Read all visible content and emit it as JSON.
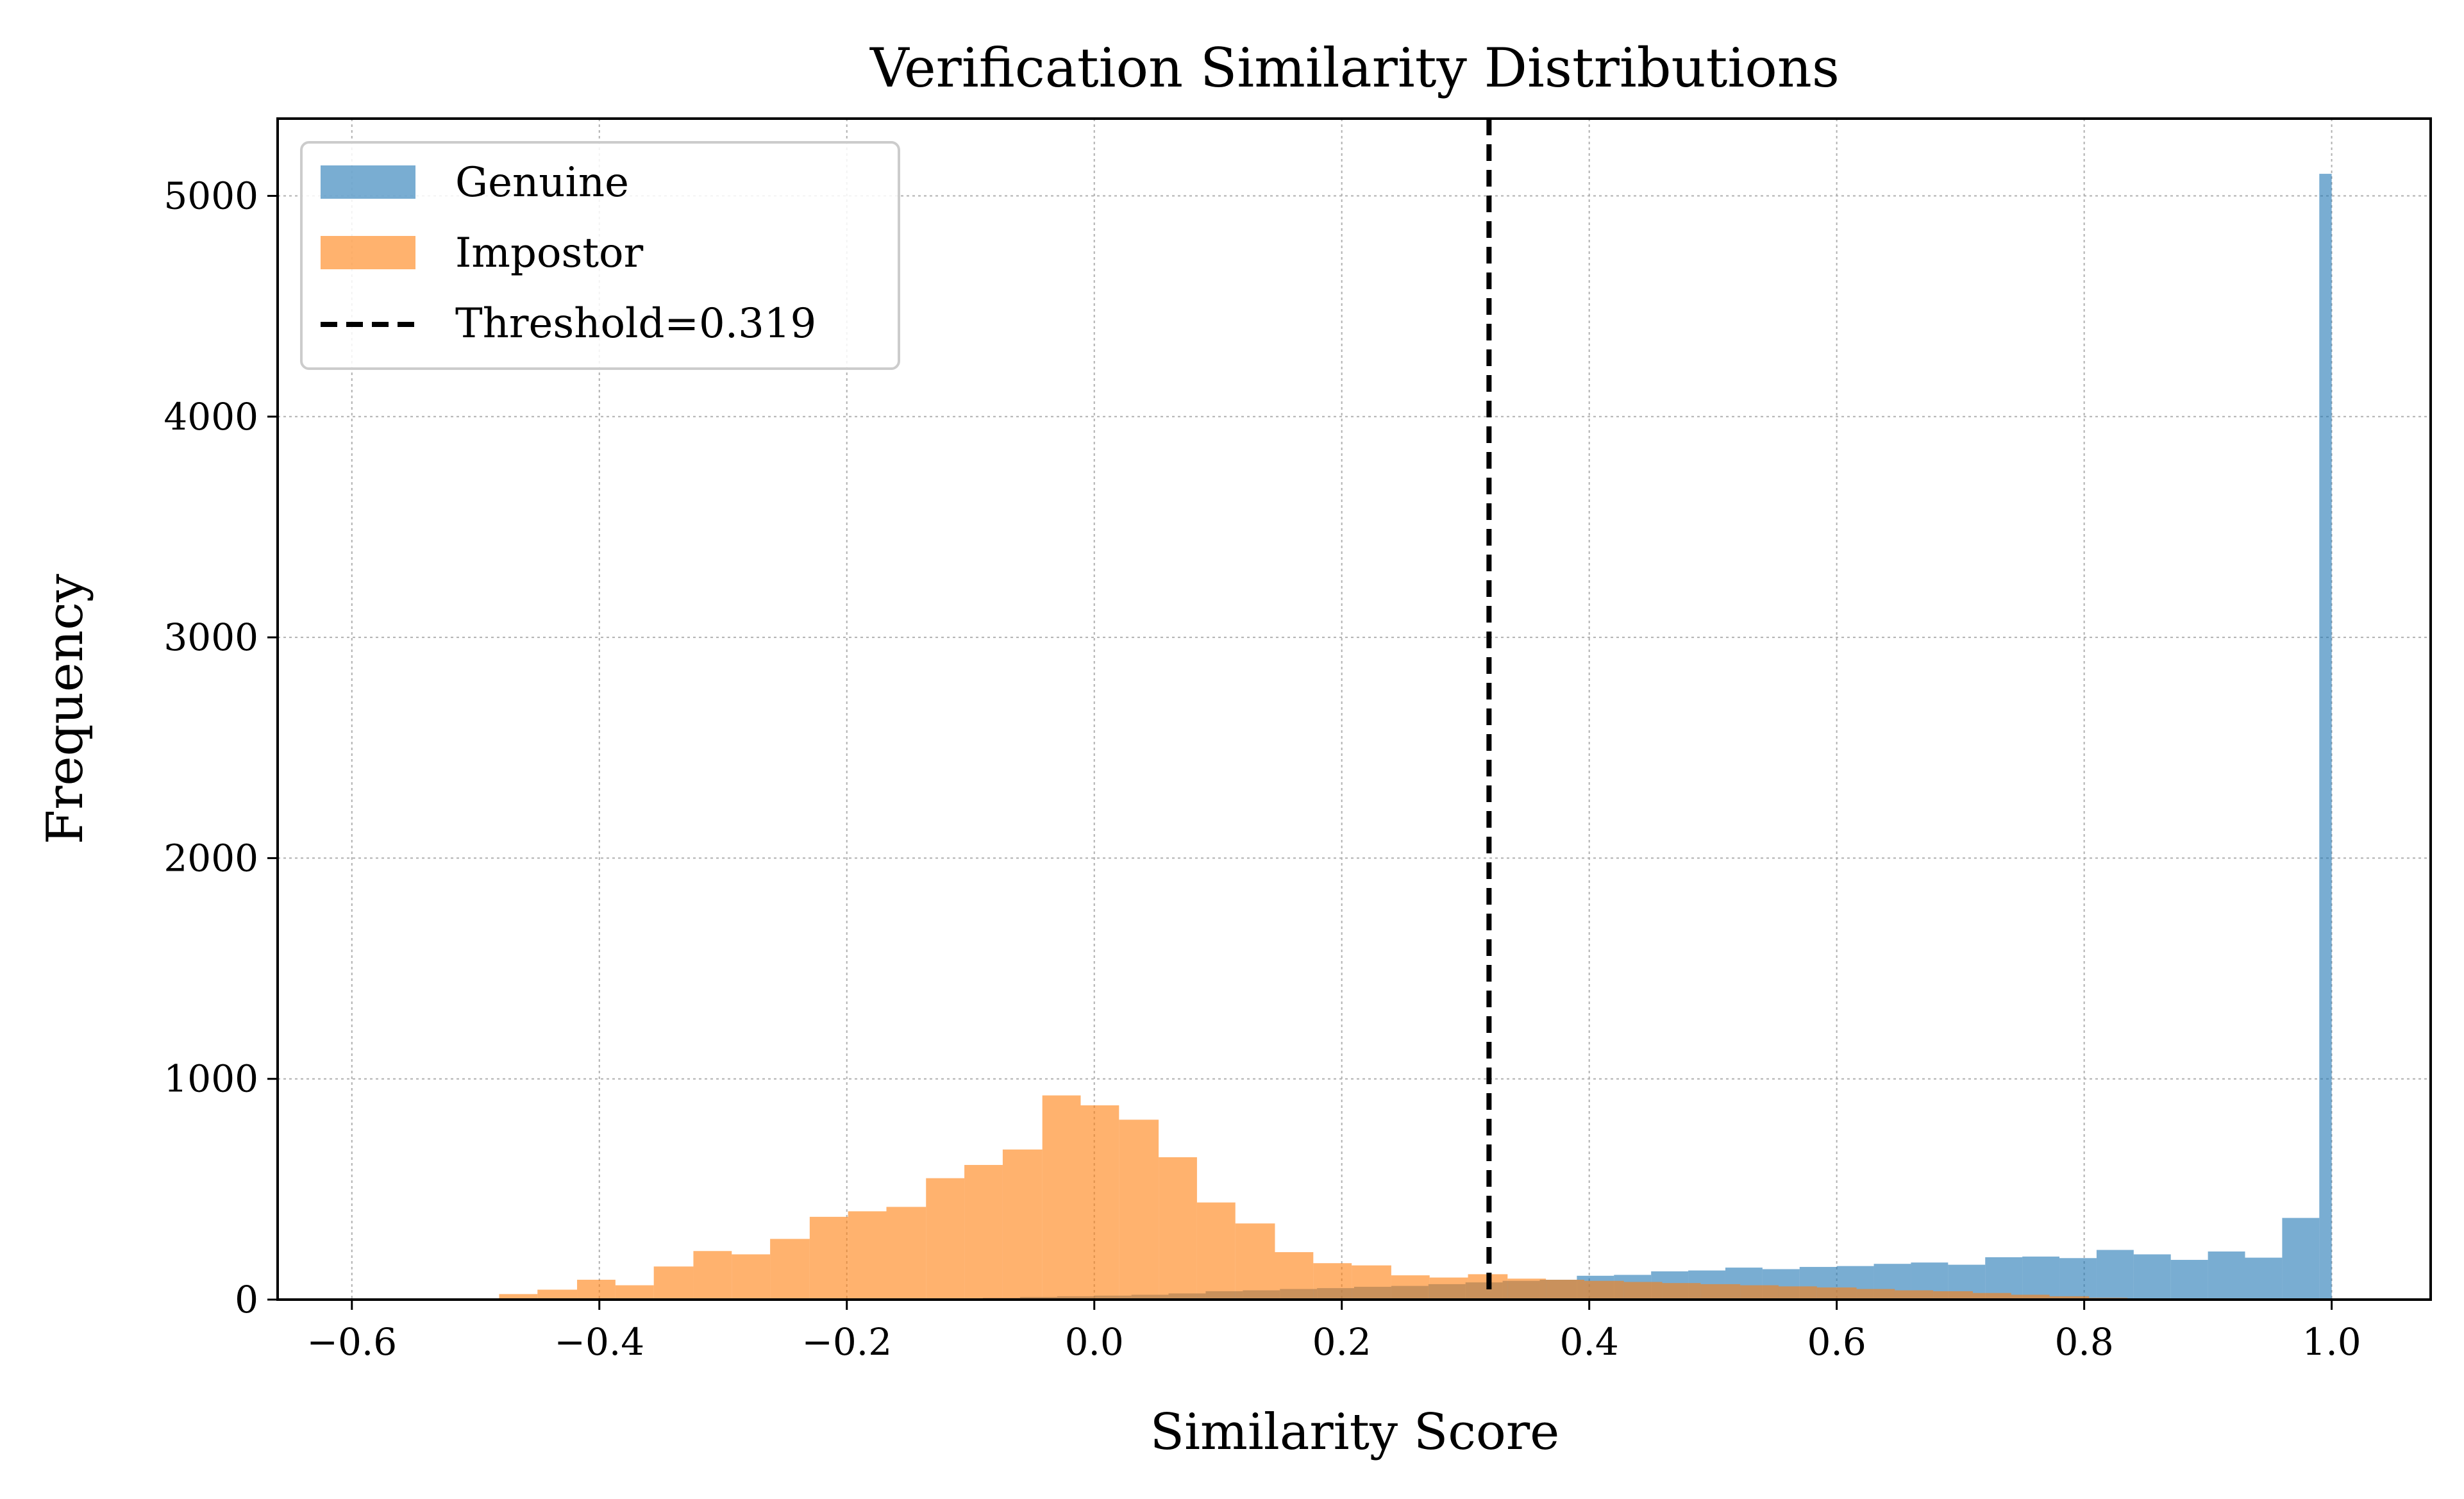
{
  "chart_data": {
    "type": "bar",
    "title": "Verification Similarity Distributions",
    "xlabel": "Similarity Score",
    "ylabel": "Frequency",
    "xlim": [
      -0.66,
      1.08
    ],
    "ylim": [
      0,
      5350
    ],
    "xticks": [
      -0.6,
      -0.4,
      -0.2,
      0.0,
      0.2,
      0.4,
      0.6,
      0.8,
      1.0
    ],
    "xtick_labels": [
      "−0.6",
      "−0.4",
      "−0.2",
      "0.0",
      "0.2",
      "0.4",
      "0.6",
      "0.8",
      "1.0"
    ],
    "yticks": [
      0,
      1000,
      2000,
      3000,
      4000,
      5000
    ],
    "ytick_labels": [
      "0",
      "1000",
      "2000",
      "3000",
      "4000",
      "5000"
    ],
    "grid": true,
    "legend_position": "top-left",
    "threshold": {
      "value": 0.319,
      "label": "Threshold=0.319",
      "color": "#000000"
    },
    "series": [
      {
        "name": "Genuine",
        "color": "#1f77b4",
        "opacity": 0.6,
        "bins": [
          [
            -0.15,
            -0.12,
            3
          ],
          [
            -0.12,
            -0.09,
            5
          ],
          [
            -0.09,
            -0.06,
            8
          ],
          [
            -0.06,
            -0.03,
            12
          ],
          [
            -0.03,
            0.0,
            15
          ],
          [
            0.0,
            0.03,
            18
          ],
          [
            0.03,
            0.06,
            22
          ],
          [
            0.06,
            0.09,
            28
          ],
          [
            0.09,
            0.12,
            38
          ],
          [
            0.12,
            0.15,
            42
          ],
          [
            0.15,
            0.18,
            48
          ],
          [
            0.18,
            0.21,
            52
          ],
          [
            0.21,
            0.24,
            58
          ],
          [
            0.24,
            0.27,
            62
          ],
          [
            0.27,
            0.3,
            70
          ],
          [
            0.3,
            0.33,
            78
          ],
          [
            0.33,
            0.36,
            85
          ],
          [
            0.36,
            0.39,
            90
          ],
          [
            0.39,
            0.42,
            108
          ],
          [
            0.42,
            0.45,
            112
          ],
          [
            0.45,
            0.48,
            128
          ],
          [
            0.48,
            0.51,
            132
          ],
          [
            0.51,
            0.54,
            145
          ],
          [
            0.54,
            0.57,
            138
          ],
          [
            0.57,
            0.6,
            148
          ],
          [
            0.6,
            0.63,
            152
          ],
          [
            0.63,
            0.66,
            162
          ],
          [
            0.66,
            0.69,
            168
          ],
          [
            0.69,
            0.72,
            158
          ],
          [
            0.72,
            0.75,
            192
          ],
          [
            0.75,
            0.78,
            195
          ],
          [
            0.78,
            0.81,
            188
          ],
          [
            0.81,
            0.84,
            225
          ],
          [
            0.84,
            0.87,
            205
          ],
          [
            0.87,
            0.9,
            180
          ],
          [
            0.9,
            0.93,
            218
          ],
          [
            0.93,
            0.96,
            190
          ],
          [
            0.96,
            0.99,
            370
          ],
          [
            0.99,
            1.0,
            5100
          ]
        ]
      },
      {
        "name": "Impostor",
        "color": "#ff7f0e",
        "opacity": 0.6,
        "bins": [
          [
            -0.481,
            -0.45,
            25
          ],
          [
            -0.45,
            -0.418,
            45
          ],
          [
            -0.418,
            -0.387,
            90
          ],
          [
            -0.387,
            -0.356,
            65
          ],
          [
            -0.356,
            -0.324,
            150
          ],
          [
            -0.324,
            -0.293,
            220
          ],
          [
            -0.293,
            -0.262,
            205
          ],
          [
            -0.262,
            -0.23,
            275
          ],
          [
            -0.23,
            -0.199,
            375
          ],
          [
            -0.199,
            -0.168,
            400
          ],
          [
            -0.168,
            -0.136,
            420
          ],
          [
            -0.136,
            -0.105,
            550
          ],
          [
            -0.105,
            -0.074,
            610
          ],
          [
            -0.074,
            -0.042,
            680
          ],
          [
            -0.042,
            -0.011,
            925
          ],
          [
            -0.011,
            0.02,
            880
          ],
          [
            0.02,
            0.052,
            815
          ],
          [
            0.052,
            0.083,
            645
          ],
          [
            0.083,
            0.114,
            440
          ],
          [
            0.114,
            0.146,
            345
          ],
          [
            0.146,
            0.177,
            215
          ],
          [
            0.177,
            0.208,
            165
          ],
          [
            0.208,
            0.24,
            155
          ],
          [
            0.24,
            0.271,
            110
          ],
          [
            0.271,
            0.302,
            100
          ],
          [
            0.302,
            0.334,
            115
          ],
          [
            0.334,
            0.365,
            95
          ],
          [
            0.365,
            0.396,
            90
          ],
          [
            0.396,
            0.428,
            85
          ],
          [
            0.428,
            0.459,
            80
          ],
          [
            0.459,
            0.49,
            75
          ],
          [
            0.49,
            0.522,
            70
          ],
          [
            0.522,
            0.553,
            65
          ],
          [
            0.553,
            0.584,
            60
          ],
          [
            0.584,
            0.616,
            55
          ],
          [
            0.616,
            0.647,
            48
          ],
          [
            0.647,
            0.678,
            42
          ],
          [
            0.678,
            0.71,
            38
          ],
          [
            0.71,
            0.741,
            30
          ],
          [
            0.741,
            0.772,
            22
          ],
          [
            0.772,
            0.804,
            15
          ],
          [
            0.804,
            0.835,
            8
          ]
        ]
      }
    ]
  }
}
